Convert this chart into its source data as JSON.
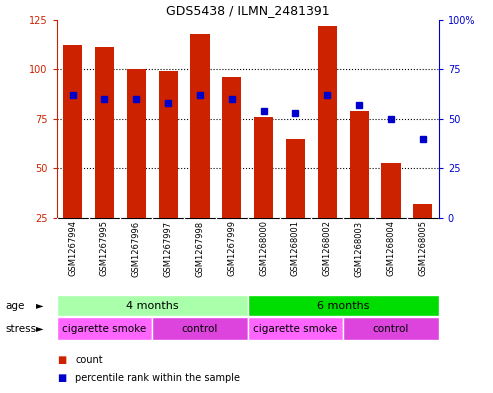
{
  "title": "GDS5438 / ILMN_2481391",
  "samples": [
    "GSM1267994",
    "GSM1267995",
    "GSM1267996",
    "GSM1267997",
    "GSM1267998",
    "GSM1267999",
    "GSM1268000",
    "GSM1268001",
    "GSM1268002",
    "GSM1268003",
    "GSM1268004",
    "GSM1268005"
  ],
  "counts": [
    112,
    111,
    100,
    99,
    118,
    96,
    76,
    65,
    122,
    79,
    53,
    32
  ],
  "percentiles": [
    62,
    60,
    60,
    58,
    62,
    60,
    54,
    53,
    62,
    57,
    50,
    40
  ],
  "bar_color": "#cc2200",
  "dot_color": "#0000cc",
  "ylim_left": [
    25,
    125
  ],
  "ylim_right": [
    0,
    100
  ],
  "yticks_left": [
    25,
    50,
    75,
    100,
    125
  ],
  "yticks_right": [
    0,
    25,
    50,
    75,
    100
  ],
  "ytick_labels_left": [
    "25",
    "50",
    "75",
    "100",
    "125"
  ],
  "ytick_labels_right": [
    "0",
    "25",
    "50",
    "75",
    "100%"
  ],
  "grid_values": [
    50,
    75,
    100
  ],
  "age_groups": [
    {
      "label": "4 months",
      "start": 0,
      "end": 6,
      "color": "#aaffaa"
    },
    {
      "label": "6 months",
      "start": 6,
      "end": 12,
      "color": "#00dd00"
    }
  ],
  "stress_groups": [
    {
      "label": "cigarette smoke",
      "start": 0,
      "end": 3,
      "color": "#ff66ff"
    },
    {
      "label": "control",
      "start": 3,
      "end": 6,
      "color": "#dd44dd"
    },
    {
      "label": "cigarette smoke",
      "start": 6,
      "end": 9,
      "color": "#ff66ff"
    },
    {
      "label": "control",
      "start": 9,
      "end": 12,
      "color": "#dd44dd"
    }
  ],
  "bar_width": 0.6,
  "background_color": "#ffffff",
  "plot_bg_color": "#ffffff",
  "xtick_bg": "#c8c8c8",
  "legend_count_color": "#cc2200",
  "legend_pct_color": "#0000cc"
}
